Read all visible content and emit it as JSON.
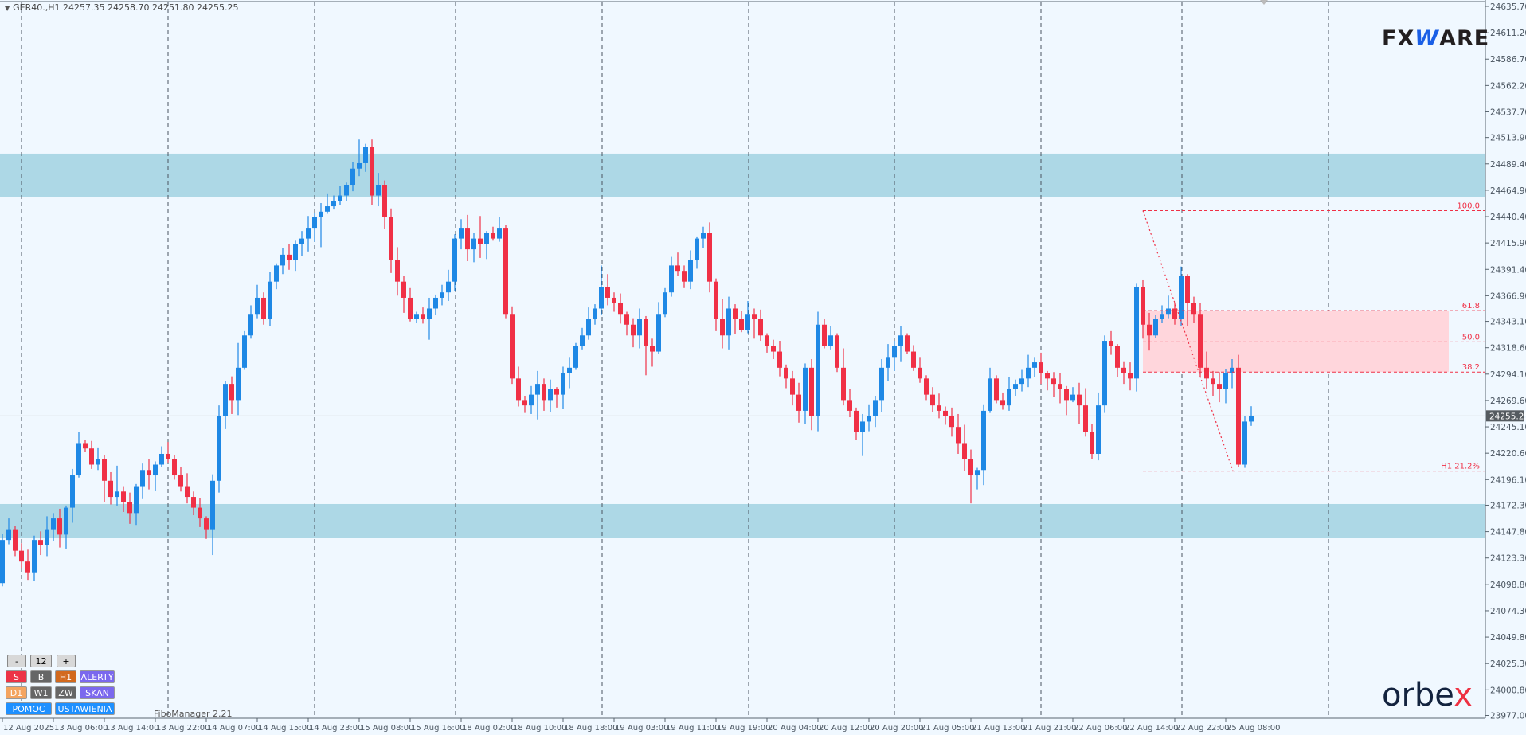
{
  "header": {
    "symbol": "GER40.,H1",
    "open": "24257.35",
    "high": "24258.70",
    "low": "24251.80",
    "close": "24255.25"
  },
  "colors": {
    "background": "#f0f8ff",
    "bull": "#1e88e5",
    "bear": "#f03046",
    "zone": "#add8e6",
    "fibo": "#f03046",
    "fibo_zone": "#ffd6dc",
    "price_box": "#555b60"
  },
  "panel": {
    "row1": [
      "-",
      "12",
      "+"
    ],
    "row2": [
      {
        "label": "S",
        "color": "#ec3346"
      },
      {
        "label": "B",
        "color": "#666666"
      },
      {
        "label": "H1",
        "color": "#d2691e"
      },
      {
        "label": "ALERTY",
        "color": "#7b68ee"
      }
    ],
    "row3": [
      {
        "label": "D1",
        "color": "#f4a460"
      },
      {
        "label": "W1",
        "color": "#666666"
      },
      {
        "label": "ZW",
        "color": "#666666"
      },
      {
        "label": "SKAN",
        "color": "#7b68ee"
      }
    ],
    "row4": [
      {
        "label": "POMOC",
        "color": "#1e90ff"
      },
      {
        "label": "USTAWIENIA",
        "color": "#1e90ff"
      }
    ]
  },
  "indicator_name": "FiboManager 2.21",
  "logos": {
    "top": "FXWARE",
    "bottom": "orbex"
  },
  "chart_data": {
    "type": "candlestick",
    "symbol": "GER40.",
    "timeframe": "H1",
    "ylim": [
      23977.0,
      24635.7
    ],
    "y_ticks": [
      "24635.70",
      "24611.20",
      "24586.70",
      "24562.20",
      "24537.70",
      "24513.90",
      "24489.40",
      "24464.90",
      "24440.40",
      "24415.90",
      "24391.40",
      "24366.90",
      "24343.10",
      "24318.60",
      "24294.10",
      "24269.60",
      "24245.10",
      "24220.60",
      "24196.10",
      "24172.30",
      "24147.80",
      "24123.30",
      "24098.80",
      "24074.30",
      "24049.80",
      "24025.30",
      "24000.80",
      "23977.00"
    ],
    "x_ticks": [
      "12 Aug 2025",
      "13 Aug 06:00",
      "13 Aug 14:00",
      "13 Aug 22:00",
      "14 Aug 07:00",
      "14 Aug 15:00",
      "14 Aug 23:00",
      "15 Aug 08:00",
      "15 Aug 16:00",
      "18 Aug 02:00",
      "18 Aug 10:00",
      "18 Aug 18:00",
      "19 Aug 03:00",
      "19 Aug 11:00",
      "19 Aug 19:00",
      "20 Aug 04:00",
      "20 Aug 12:00",
      "20 Aug 20:00",
      "21 Aug 05:00",
      "21 Aug 13:00",
      "21 Aug 21:00",
      "22 Aug 06:00",
      "22 Aug 14:00",
      "22 Aug 22:00",
      "25 Aug 08:00"
    ],
    "current_price": "24255.25",
    "close": [
      24100,
      24140,
      24150,
      24130,
      24120,
      24110,
      24140,
      24135,
      24150,
      24160,
      24145,
      24170,
      24200,
      24230,
      24225,
      24210,
      24215,
      24195,
      24180,
      24185,
      24175,
      24165,
      24190,
      24205,
      24200,
      24210,
      24220,
      24215,
      24200,
      24190,
      24180,
      24170,
      24160,
      24150,
      24195,
      24255,
      24285,
      24270,
      24300,
      24330,
      24350,
      24365,
      24345,
      24380,
      24395,
      24405,
      24400,
      24415,
      24420,
      24430,
      24440,
      24445,
      24450,
      24455,
      24460,
      24470,
      24485,
      24490,
      24505,
      24460,
      24470,
      24440,
      24400,
      24380,
      24365,
      24345,
      24350,
      24345,
      24355,
      24365,
      24370,
      24380,
      24420,
      24430,
      24410,
      24420,
      24415,
      24425,
      24420,
      24430,
      24350,
      24290,
      24270,
      24265,
      24275,
      24285,
      24270,
      24280,
      24275,
      24295,
      24300,
      24320,
      24330,
      24345,
      24355,
      24375,
      24365,
      24360,
      24350,
      24340,
      24330,
      24345,
      24320,
      24315,
      24350,
      24370,
      24395,
      24390,
      24380,
      24400,
      24420,
      24425,
      24380,
      24345,
      24330,
      24355,
      24345,
      24335,
      24350,
      24345,
      24330,
      24320,
      24315,
      24300,
      24290,
      24275,
      24260,
      24300,
      24255,
      24340,
      24320,
      24330,
      24300,
      24270,
      24260,
      24240,
      24250,
      24255,
      24270,
      24300,
      24310,
      24320,
      24330,
      24315,
      24300,
      24290,
      24275,
      24265,
      24260,
      24255,
      24245,
      24230,
      24215,
      24200,
      24205,
      24260,
      24290,
      24270,
      24265,
      24280,
      24285,
      24290,
      24300,
      24305,
      24295,
      24290,
      24285,
      24280,
      24270,
      24275,
      24265,
      24240,
      24220,
      24265,
      24325,
      24320,
      24300,
      24295,
      24290,
      24375,
      24340,
      24330,
      24345,
      24350,
      24355,
      24345,
      24385,
      24360,
      24350,
      24300,
      24290,
      24285,
      24280,
      24295,
      24300,
      24210,
      24250,
      24255.25
    ],
    "zones": [
      {
        "from": 24458.9,
        "to": 24498.9
      },
      {
        "from": 24142.3,
        "to": 24173.4
      }
    ],
    "fibonacci": {
      "high": 24446,
      "low": 24204,
      "levels": [
        {
          "label": "100.0",
          "price": 24446
        },
        {
          "label": "61.8",
          "price": 24353
        },
        {
          "label": "50.0",
          "price": 24324
        },
        {
          "label": "38.2",
          "price": 24296
        },
        {
          "label": "H1 21.2%",
          "price": 24204
        }
      ]
    }
  }
}
